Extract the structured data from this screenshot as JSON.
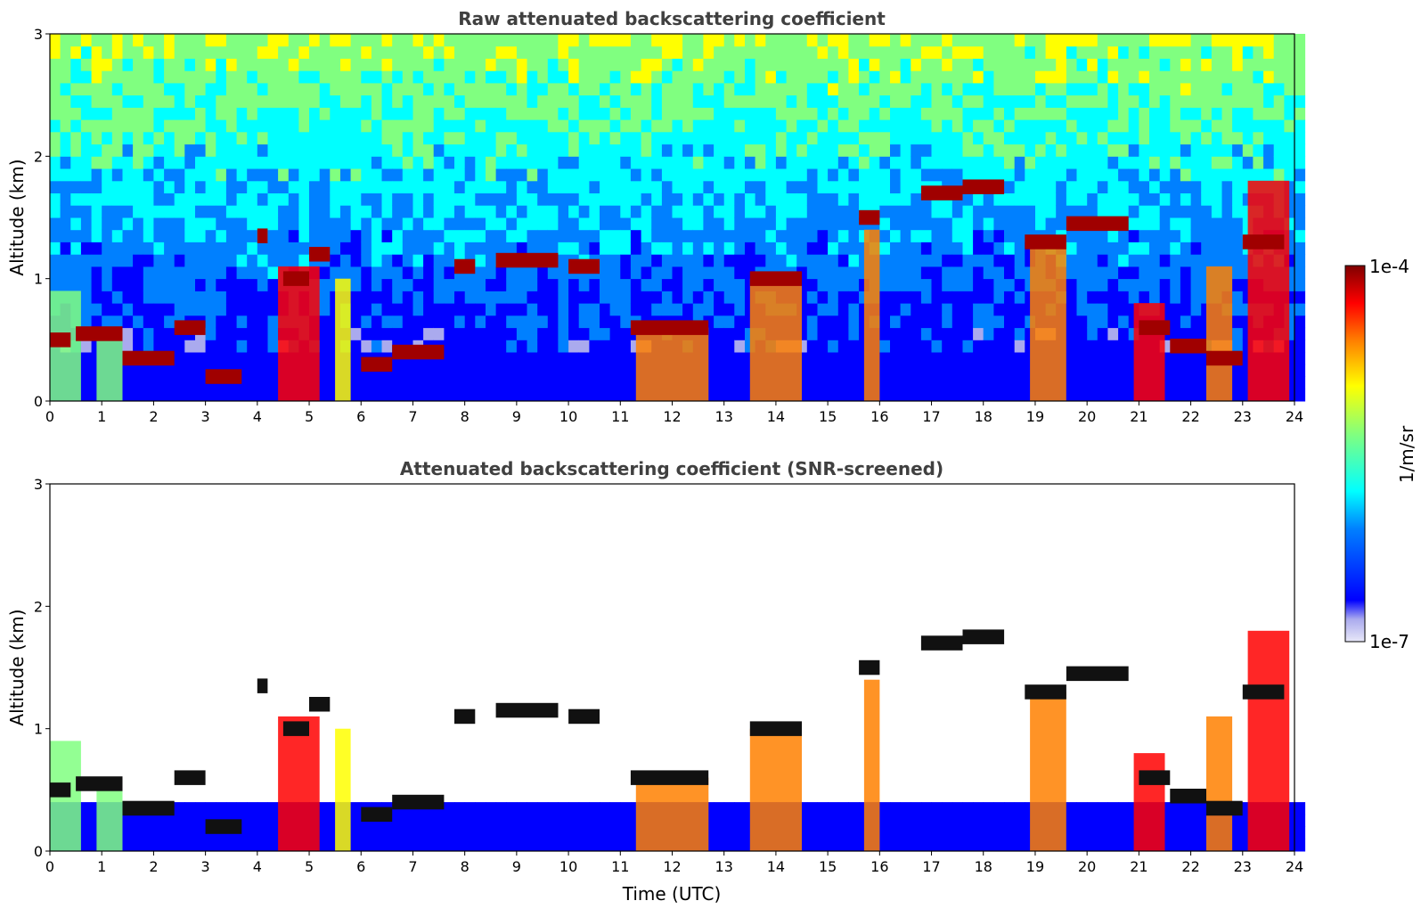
{
  "chart_data": [
    {
      "type": "heatmap",
      "title": "Raw attenuated backscattering coefficient",
      "xlabel": "",
      "ylabel": "Altitude (km)",
      "xlim": [
        0,
        24
      ],
      "ylim": [
        0,
        3
      ],
      "xticks": [
        "0",
        "1",
        "2",
        "3",
        "4",
        "5",
        "6",
        "7",
        "8",
        "9",
        "10",
        "11",
        "12",
        "13",
        "14",
        "15",
        "16",
        "17",
        "18",
        "19",
        "20",
        "21",
        "22",
        "23",
        "24"
      ],
      "yticks": [
        "0",
        "1",
        "2",
        "3"
      ],
      "noise_above_km": 0.4,
      "layers": [
        {
          "t0": 0.0,
          "t1": 0.4,
          "z": 0.5
        },
        {
          "t0": 0.5,
          "t1": 1.4,
          "z": 0.55
        },
        {
          "t0": 1.4,
          "t1": 2.4,
          "z": 0.35
        },
        {
          "t0": 2.4,
          "t1": 3.0,
          "z": 0.6
        },
        {
          "t0": 3.0,
          "t1": 3.7,
          "z": 0.2
        },
        {
          "t0": 4.0,
          "t1": 4.2,
          "z": 1.35
        },
        {
          "t0": 4.5,
          "t1": 5.0,
          "z": 1.0
        },
        {
          "t0": 5.0,
          "t1": 5.4,
          "z": 1.2
        },
        {
          "t0": 6.0,
          "t1": 6.6,
          "z": 0.3
        },
        {
          "t0": 6.6,
          "t1": 7.6,
          "z": 0.4
        },
        {
          "t0": 7.8,
          "t1": 8.2,
          "z": 1.1
        },
        {
          "t0": 8.6,
          "t1": 9.8,
          "z": 1.15
        },
        {
          "t0": 10.0,
          "t1": 10.6,
          "z": 1.1
        },
        {
          "t0": 11.2,
          "t1": 12.7,
          "z": 0.6
        },
        {
          "t0": 13.5,
          "t1": 14.5,
          "z": 1.0
        },
        {
          "t0": 15.6,
          "t1": 16.0,
          "z": 1.5
        },
        {
          "t0": 16.8,
          "t1": 17.6,
          "z": 1.7
        },
        {
          "t0": 17.6,
          "t1": 18.4,
          "z": 1.75
        },
        {
          "t0": 18.8,
          "t1": 19.6,
          "z": 1.3
        },
        {
          "t0": 19.6,
          "t1": 20.8,
          "z": 1.45
        },
        {
          "t0": 21.0,
          "t1": 21.6,
          "z": 0.6
        },
        {
          "t0": 21.6,
          "t1": 22.3,
          "z": 0.45
        },
        {
          "t0": 22.3,
          "t1": 23.0,
          "z": 0.35
        },
        {
          "t0": 23.0,
          "t1": 23.8,
          "z": 1.3
        }
      ],
      "plumes": [
        {
          "t0": 0.0,
          "t1": 0.6,
          "top": 0.9,
          "level": 0.55
        },
        {
          "t0": 0.9,
          "t1": 1.4,
          "top": 0.6,
          "level": 0.5
        },
        {
          "t0": 4.4,
          "t1": 5.2,
          "top": 1.1,
          "level": 0.85
        },
        {
          "t0": 5.5,
          "t1": 5.8,
          "top": 1.0,
          "level": 0.6
        },
        {
          "t0": 11.3,
          "t1": 12.7,
          "top": 0.6,
          "level": 0.75
        },
        {
          "t0": 13.5,
          "t1": 14.5,
          "top": 1.0,
          "level": 0.7
        },
        {
          "t0": 15.7,
          "t1": 16.0,
          "top": 1.4,
          "level": 0.7
        },
        {
          "t0": 18.9,
          "t1": 19.6,
          "top": 1.3,
          "level": 0.7
        },
        {
          "t0": 20.9,
          "t1": 21.5,
          "top": 0.8,
          "level": 0.8
        },
        {
          "t0": 22.3,
          "t1": 22.8,
          "top": 1.1,
          "level": 0.75
        },
        {
          "t0": 23.1,
          "t1": 23.9,
          "top": 1.8,
          "level": 0.8
        }
      ]
    },
    {
      "type": "heatmap",
      "title": "Attenuated backscattering coefficient (SNR-screened)",
      "xlabel": "Time (UTC)",
      "ylabel": "Altitude (km)",
      "xlim": [
        0,
        24
      ],
      "ylim": [
        0,
        3
      ],
      "xticks": [
        "0",
        "1",
        "2",
        "3",
        "4",
        "5",
        "6",
        "7",
        "8",
        "9",
        "10",
        "11",
        "12",
        "13",
        "14",
        "15",
        "16",
        "17",
        "18",
        "19",
        "20",
        "21",
        "22",
        "23",
        "24"
      ],
      "yticks": [
        "0",
        "1",
        "2",
        "3"
      ],
      "screened": true
    }
  ],
  "colorbar": {
    "label": "1/m/sr",
    "max_label": "1e-4",
    "min_label": "1e-7",
    "colors": [
      "#e8e8f8",
      "#aaaaee",
      "#0000ff",
      "#0080ff",
      "#00ffff",
      "#80ff80",
      "#ffff00",
      "#ff8000",
      "#ff0000",
      "#800000"
    ]
  }
}
